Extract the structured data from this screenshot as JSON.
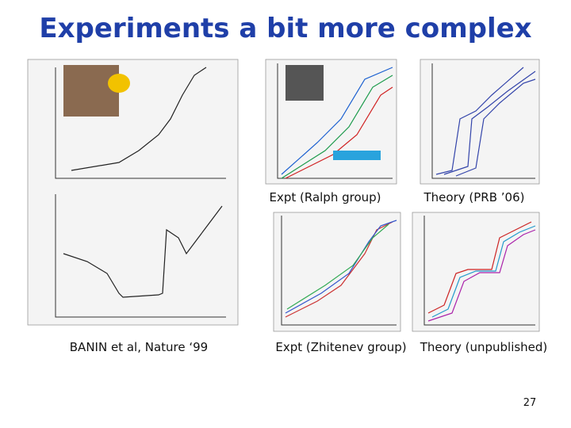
{
  "header": {
    "title": "Experiments a bit more complex"
  },
  "captions": [
    "Expt (Ralph group)",
    "Theory (PRB ’06)",
    "BANIN et al, Nature ‘99",
    "Expt (Zhitenev group)",
    "Theory (unpublished)"
  ],
  "footer": {
    "page_number": "27"
  }
}
